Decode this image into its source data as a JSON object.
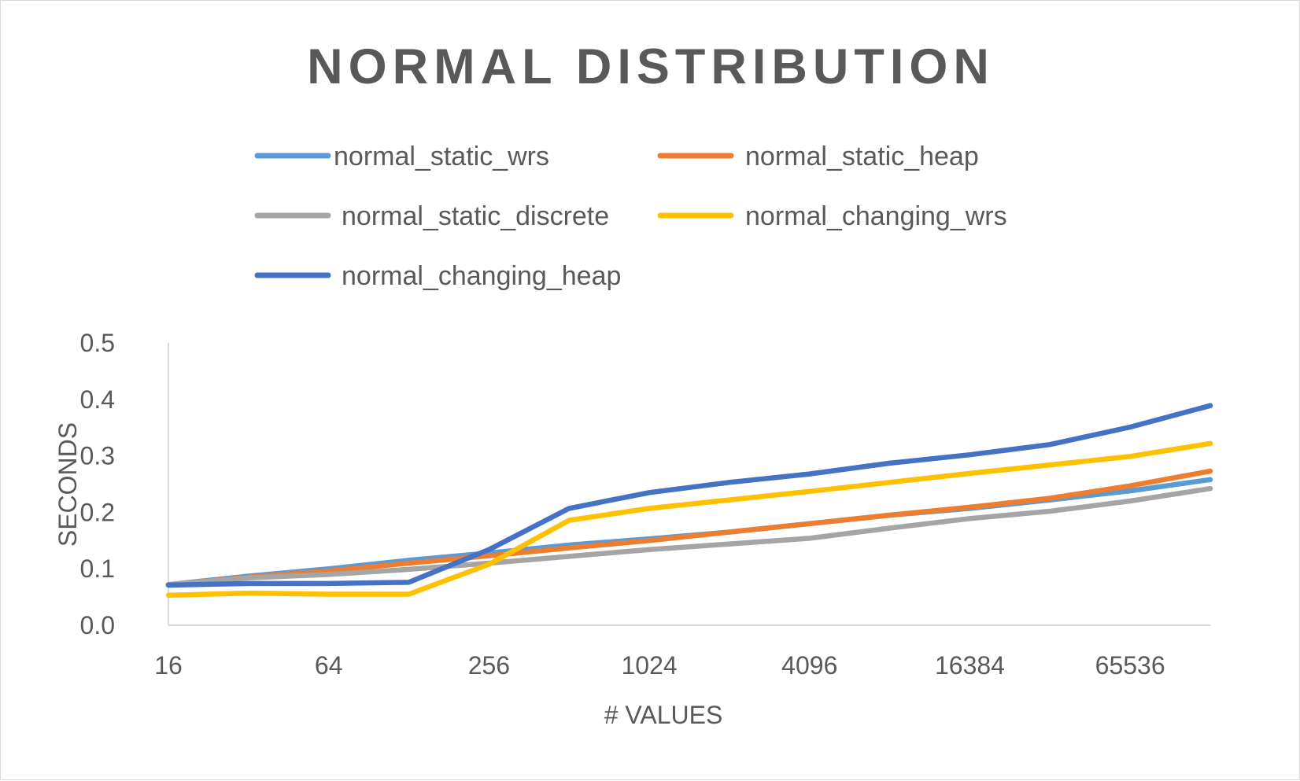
{
  "chart_data": {
    "type": "line",
    "title": "NORMAL DISTRIBUTION",
    "xlabel": "# VALUES",
    "ylabel": "SECONDS",
    "x_scale": "log2",
    "x": [
      16,
      32,
      64,
      128,
      256,
      512,
      1024,
      2048,
      4096,
      8192,
      16384,
      32768,
      65536,
      131072
    ],
    "x_tick_labels": [
      "16",
      "64",
      "256",
      "1024",
      "4096",
      "16384",
      "65536"
    ],
    "y_tick_labels": [
      "0.0",
      "0.1",
      "0.2",
      "0.3",
      "0.4",
      "0.5"
    ],
    "ylim": [
      0,
      0.5
    ],
    "grid": false,
    "legend_position": "top",
    "series": [
      {
        "name": "normal_static_wrs",
        "color": "#5b9bd5",
        "values": [
          0.072,
          0.087,
          0.1,
          0.115,
          0.128,
          0.142,
          0.153,
          0.165,
          0.18,
          0.195,
          0.207,
          0.222,
          0.238,
          0.258
        ]
      },
      {
        "name": "normal_static_heap",
        "color": "#ed7d31",
        "values": [
          0.072,
          0.085,
          0.096,
          0.11,
          0.123,
          0.137,
          0.15,
          0.165,
          0.18,
          0.195,
          0.209,
          0.225,
          0.247,
          0.273
        ]
      },
      {
        "name": "normal_static_discrete",
        "color": "#a5a5a5",
        "values": [
          0.072,
          0.084,
          0.09,
          0.099,
          0.11,
          0.122,
          0.134,
          0.144,
          0.154,
          0.172,
          0.189,
          0.202,
          0.22,
          0.242
        ]
      },
      {
        "name": "normal_changing_wrs",
        "color": "#ffc000",
        "values": [
          0.053,
          0.057,
          0.055,
          0.055,
          0.108,
          0.186,
          0.207,
          0.222,
          0.237,
          0.253,
          0.269,
          0.284,
          0.299,
          0.322
        ]
      },
      {
        "name": "normal_changing_heap",
        "color": "#4472c4",
        "values": [
          0.071,
          0.074,
          0.074,
          0.076,
          0.134,
          0.207,
          0.235,
          0.253,
          0.268,
          0.287,
          0.302,
          0.32,
          0.351,
          0.389
        ]
      }
    ]
  }
}
